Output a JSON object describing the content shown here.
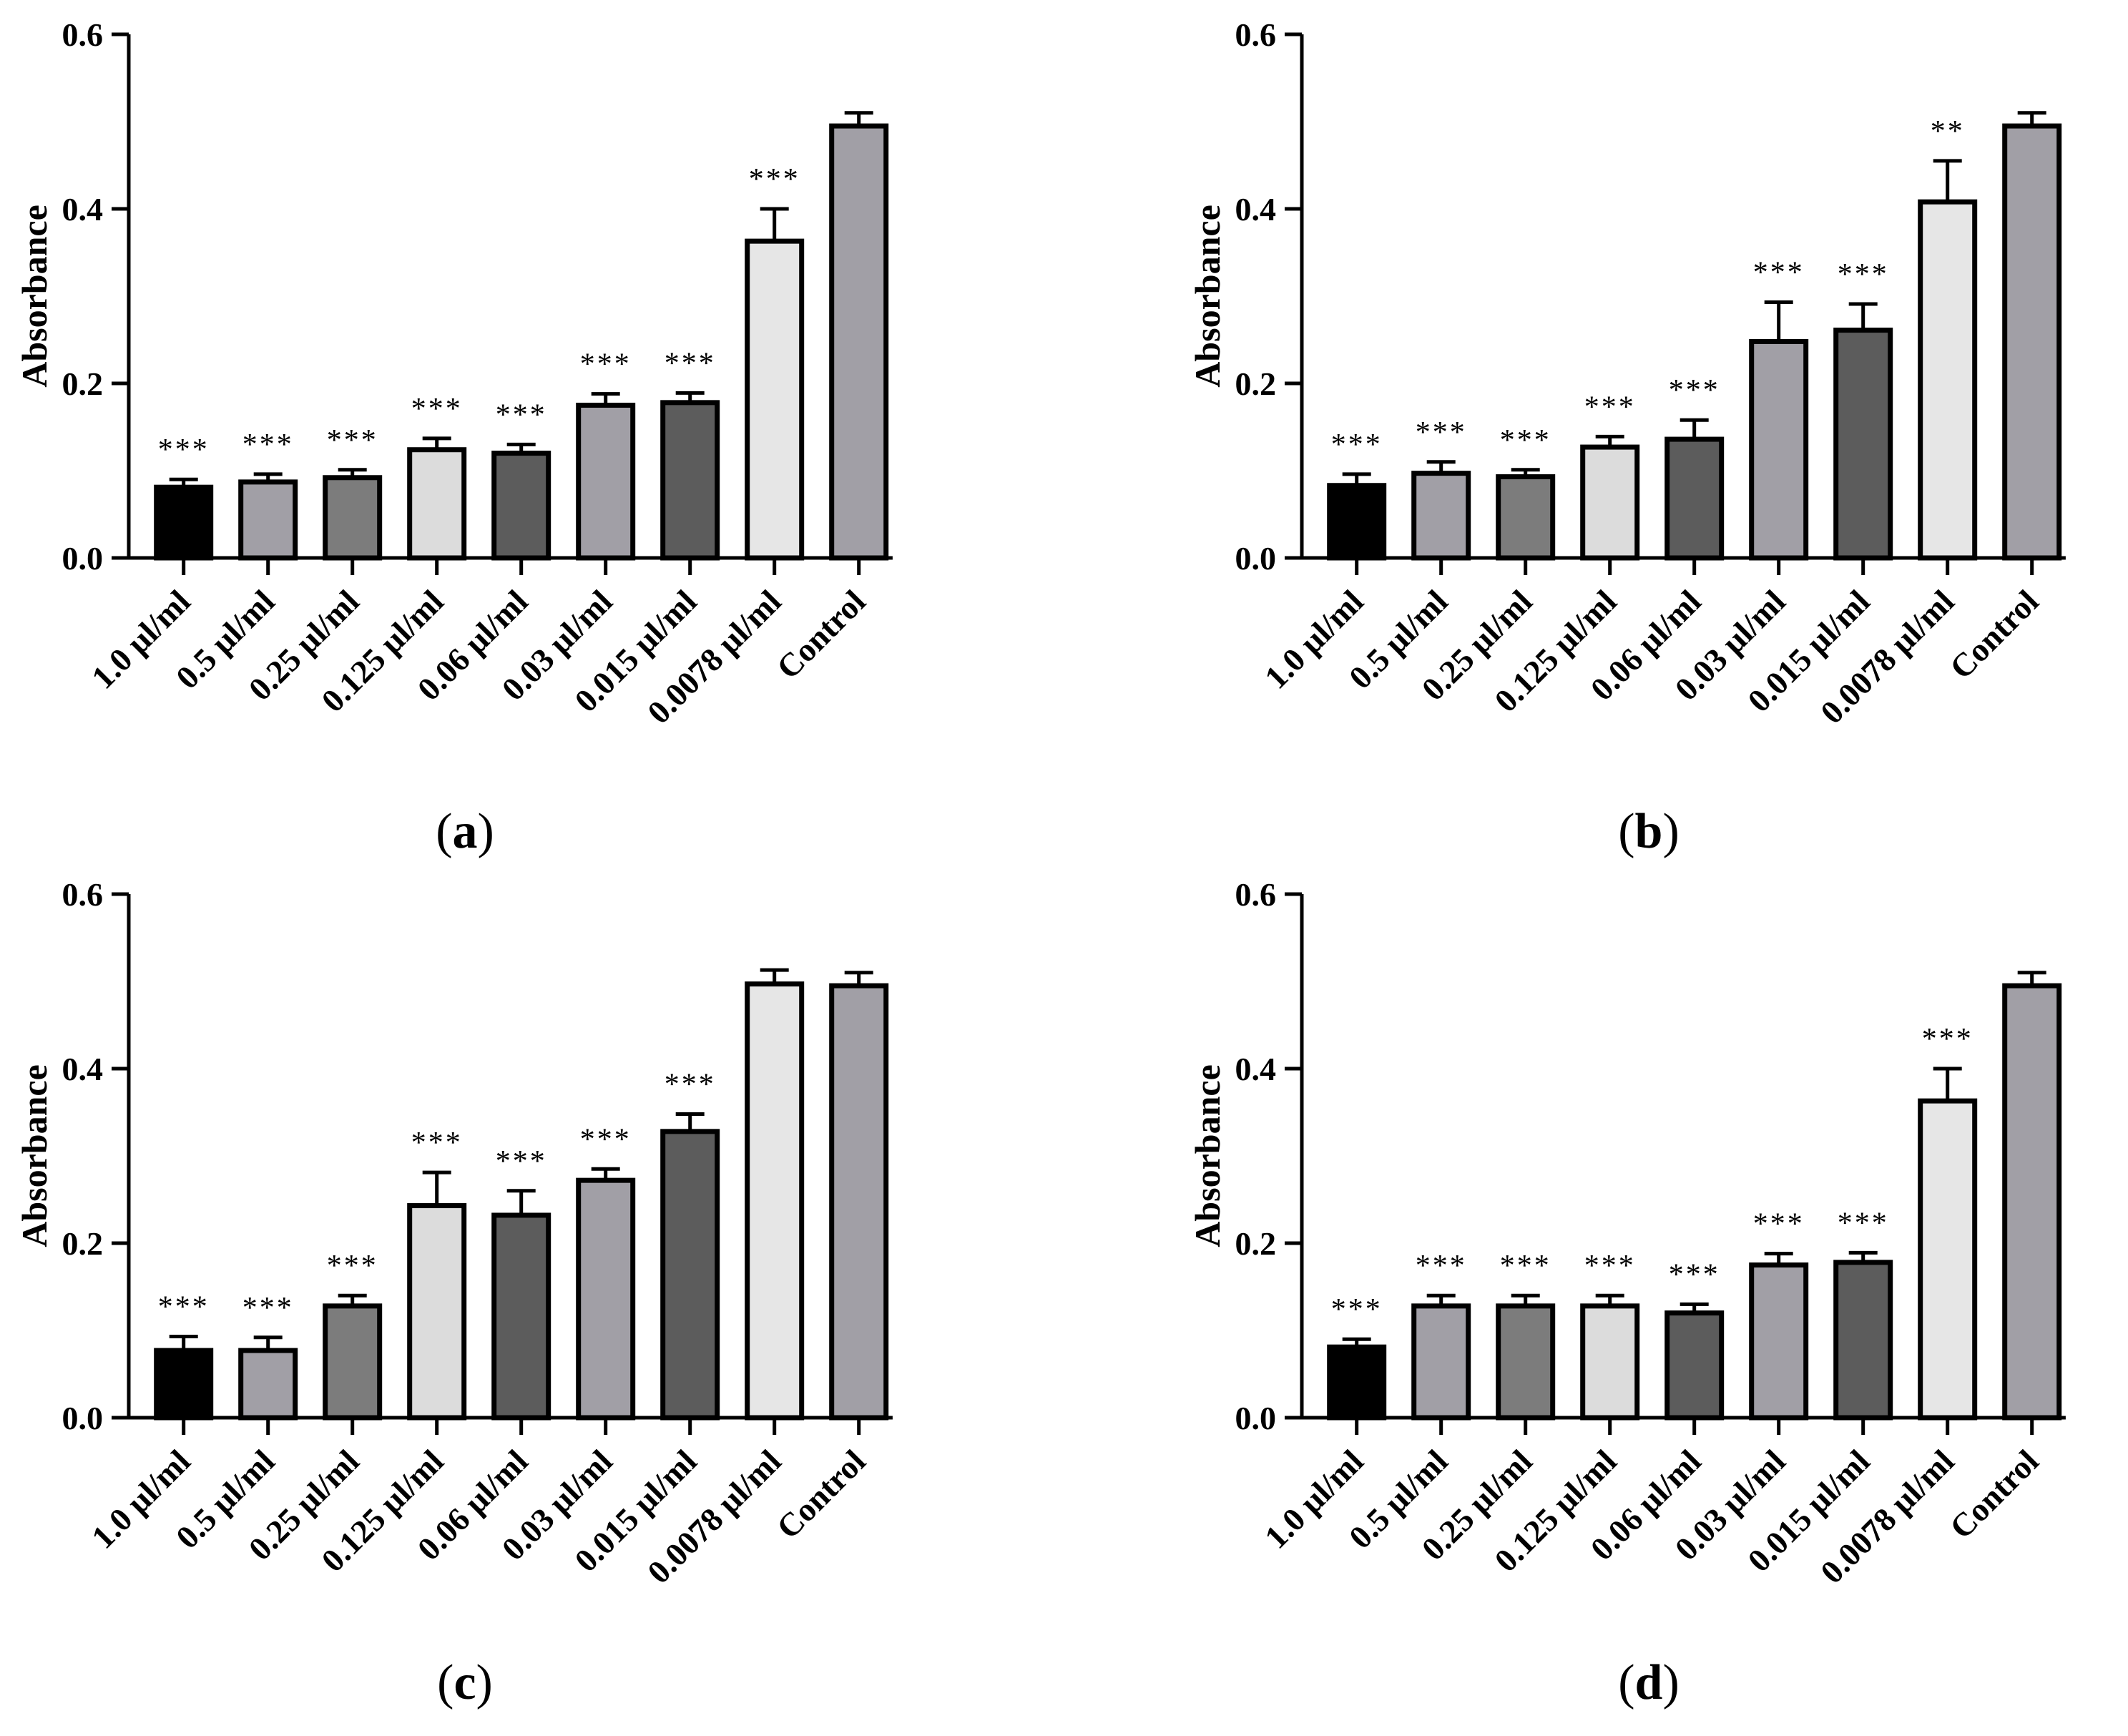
{
  "colors": {
    "fills": [
      "#000000",
      "#a19fa6",
      "#7c7c7c",
      "#dcdcdc",
      "#5c5c5c",
      "#a19fa6",
      "#5c5c5c",
      "#e6e6e6",
      "#a19fa6"
    ],
    "stroke": "#000000"
  },
  "chart_data": [
    {
      "type": "bar",
      "panel": "a",
      "title": "",
      "xlabel": "",
      "ylabel": "Absorbance",
      "ylim": [
        0,
        0.6
      ],
      "yticks": [
        "0.0",
        "0.2",
        "0.4",
        "0.6"
      ],
      "categories": [
        "1.0 µl/ml",
        "0.5 µl/ml",
        "0.25 µl/ml",
        "0.125 µl/ml",
        "0.06 µl/ml",
        "0.03 µl/ml",
        "0.015 µl/ml",
        "0.0078 µl/ml",
        "Control"
      ],
      "values": [
        0.081,
        0.087,
        0.092,
        0.124,
        0.12,
        0.175,
        0.178,
        0.363,
        0.495
      ],
      "errors": [
        0.009,
        0.009,
        0.009,
        0.013,
        0.01,
        0.013,
        0.011,
        0.037,
        0.015
      ],
      "significance": [
        "***",
        "***",
        "***",
        "***",
        "***",
        "***",
        "***",
        "***",
        ""
      ]
    },
    {
      "type": "bar",
      "panel": "b",
      "title": "",
      "xlabel": "",
      "ylabel": "Absorbance",
      "ylim": [
        0,
        0.6
      ],
      "yticks": [
        "0.0",
        "0.2",
        "0.4",
        "0.6"
      ],
      "categories": [
        "1.0 µl/ml",
        "0.5 µl/ml",
        "0.25 µl/ml",
        "0.125 µl/ml",
        "0.06 µl/ml",
        "0.03 µl/ml",
        "0.015 µl/ml",
        "0.0078 µl/ml",
        "Control"
      ],
      "values": [
        0.083,
        0.097,
        0.093,
        0.127,
        0.136,
        0.248,
        0.261,
        0.408,
        0.495
      ],
      "errors": [
        0.013,
        0.013,
        0.008,
        0.012,
        0.022,
        0.045,
        0.03,
        0.047,
        0.015
      ],
      "significance": [
        "***",
        "***",
        "***",
        "***",
        "***",
        "***",
        "***",
        "**",
        ""
      ]
    },
    {
      "type": "bar",
      "panel": "c",
      "title": "",
      "xlabel": "",
      "ylabel": "Absorbance",
      "ylim": [
        0,
        0.6
      ],
      "yticks": [
        "0.0",
        "0.2",
        "0.4",
        "0.6"
      ],
      "categories": [
        "1.0 µl/ml",
        "0.5 µl/ml",
        "0.25 µl/ml",
        "0.125 µl/ml",
        "0.06 µl/ml",
        "0.03 µl/ml",
        "0.015 µl/ml",
        "0.0078 µl/ml",
        "Control"
      ],
      "values": [
        0.077,
        0.077,
        0.128,
        0.243,
        0.232,
        0.272,
        0.328,
        0.497,
        0.495
      ],
      "errors": [
        0.016,
        0.015,
        0.012,
        0.038,
        0.028,
        0.013,
        0.02,
        0.016,
        0.015
      ],
      "significance": [
        "***",
        "***",
        "***",
        "***",
        "***",
        "***",
        "***",
        "",
        ""
      ]
    },
    {
      "type": "bar",
      "panel": "d",
      "title": "",
      "xlabel": "",
      "ylabel": "Absorbance",
      "ylim": [
        0,
        0.6
      ],
      "yticks": [
        "0.0",
        "0.2",
        "0.4",
        "0.6"
      ],
      "categories": [
        "1.0 µl/ml",
        "0.5 µl/ml",
        "0.25 µl/ml",
        "0.125 µl/ml",
        "0.06 µl/ml",
        "0.03 µl/ml",
        "0.015 µl/ml",
        "0.0078 µl/ml",
        "Control"
      ],
      "values": [
        0.081,
        0.128,
        0.128,
        0.128,
        0.12,
        0.175,
        0.178,
        0.363,
        0.495
      ],
      "errors": [
        0.009,
        0.012,
        0.012,
        0.012,
        0.01,
        0.013,
        0.011,
        0.037,
        0.015
      ],
      "significance": [
        "***",
        "***",
        "***",
        "***",
        "***",
        "***",
        "***",
        "***",
        ""
      ]
    }
  ]
}
